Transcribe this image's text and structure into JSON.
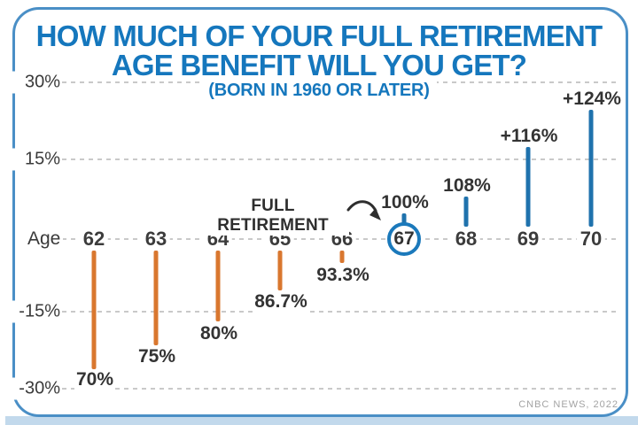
{
  "title": {
    "line1": "HOW MUCH OF YOUR FULL RETIREMENT",
    "line2": "AGE BENEFIT WILL YOU GET?",
    "subtitle": "(BORN IN 1960 OR LATER)"
  },
  "axis": {
    "row_label": "Age",
    "ticks": [
      "30%",
      "15%",
      "-15%",
      "-30%"
    ]
  },
  "annotation": {
    "text": "FULL RETIREMENT",
    "arrow_icon": "curved-arrow-right-down"
  },
  "source": "CNBC NEWS, 2022",
  "colors": {
    "title_blue": "#1577bd",
    "bar_blue": "#1f72ad",
    "circle_blue": "#1b79bb",
    "bar_orange": "#d9772f",
    "card_border_blue": "#4a8fc6",
    "shadow_blue": "#c2d9ec",
    "grid_gray": "#c9c9c9",
    "text_dark": "#3a3a3a",
    "source_gray": "#a3a3a3"
  },
  "chart_data": {
    "type": "bar",
    "subtype": "lollipop-deviation-from-100%",
    "title": "HOW MUCH OF YOUR FULL RETIREMENT AGE BENEFIT WILL YOU GET?",
    "subtitle": "(BORN IN 1960 OR LATER)",
    "xlabel": "Age",
    "categories": [
      "62",
      "63",
      "64",
      "65",
      "66",
      "67",
      "68",
      "69",
      "70"
    ],
    "values": [
      70,
      75,
      80,
      86.7,
      93.3,
      100,
      108,
      116,
      124
    ],
    "value_labels": [
      "70%",
      "75%",
      "80%",
      "86.7%",
      "93.3%",
      "100%",
      "108%",
      "+116%",
      "+124%"
    ],
    "baseline_value": 100,
    "y_gridlines_pct_from_baseline": [
      30,
      15,
      0,
      -15,
      -30
    ],
    "y_tick_labels": [
      "30%",
      "15%",
      "-15%",
      "-30%"
    ],
    "grid": "dashed horizontal",
    "highlight_category": "67",
    "highlight_annotation": "FULL RETIREMENT",
    "below_baseline_color": "#d9772f",
    "above_baseline_color": "#1f72ad",
    "source": "CNBC NEWS, 2022"
  }
}
